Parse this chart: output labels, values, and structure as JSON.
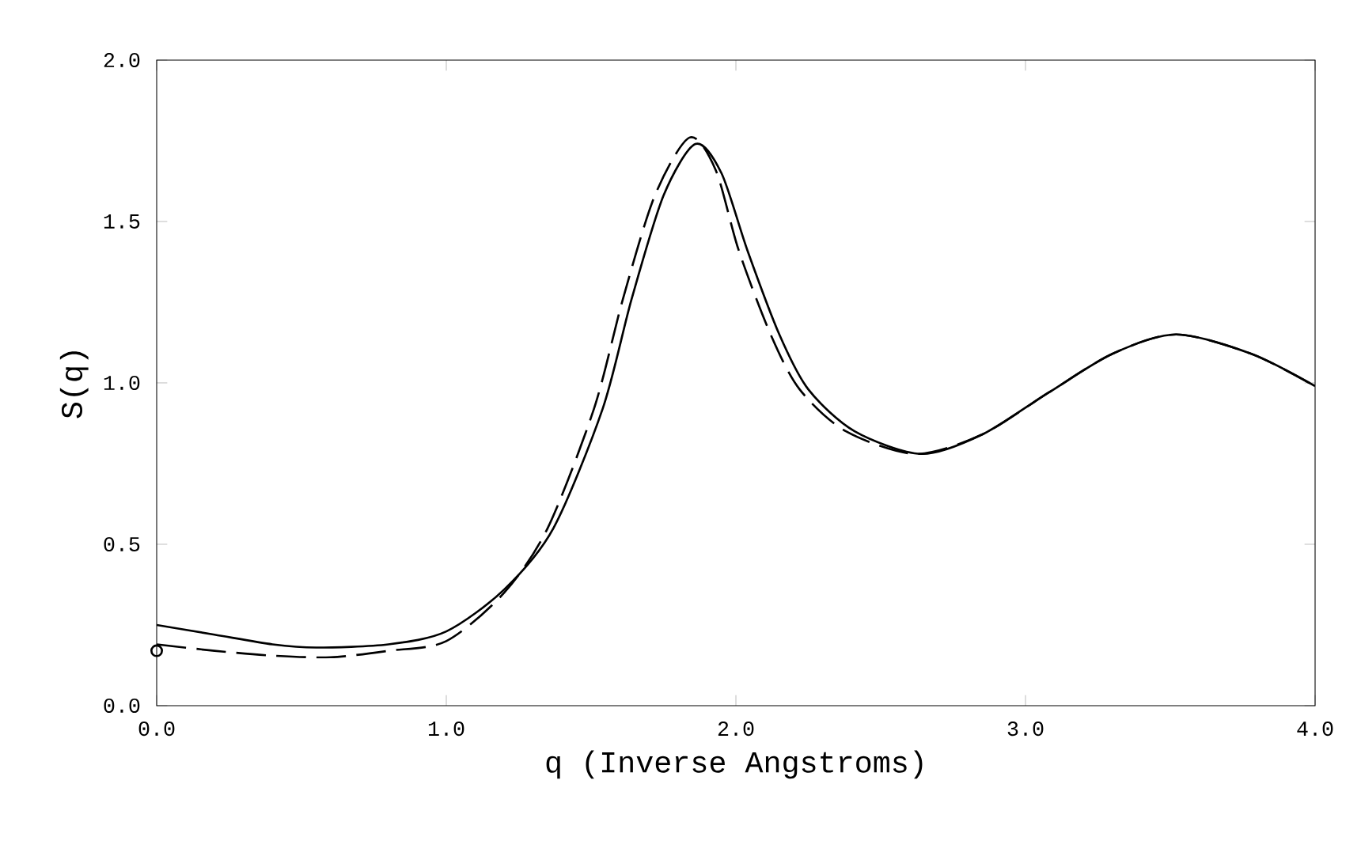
{
  "chart_data": {
    "type": "line",
    "xlabel": "q (Inverse Angstroms)",
    "ylabel": "S(q)",
    "xlim": [
      0,
      4
    ],
    "ylim": [
      0,
      2
    ],
    "xticks": [
      {
        "value": 0,
        "label": "0.0"
      },
      {
        "value": 1,
        "label": "1.0"
      },
      {
        "value": 2,
        "label": "2.0"
      },
      {
        "value": 3,
        "label": "3.0"
      },
      {
        "value": 4,
        "label": "4.0"
      }
    ],
    "yticks": [
      {
        "value": 0,
        "label": "0.0"
      },
      {
        "value": 0.5,
        "label": "0.5"
      },
      {
        "value": 1,
        "label": "1.0"
      },
      {
        "value": 1.5,
        "label": "1.5"
      },
      {
        "value": 2,
        "label": "2.0"
      }
    ],
    "series": [
      {
        "color": "#000000",
        "line_style": "solid",
        "marker": "none",
        "x": [
          0,
          0.2,
          0.4,
          0.55,
          0.8,
          1.0,
          1.2,
          1.37,
          1.54,
          1.64,
          1.75,
          1.86,
          1.95,
          2.04,
          2.15,
          2.25,
          2.41,
          2.64,
          2.85,
          3.08,
          3.3,
          3.52,
          3.78,
          4.0
        ],
        "values": [
          0.25,
          0.22,
          0.19,
          0.18,
          0.19,
          0.23,
          0.36,
          0.55,
          0.92,
          1.26,
          1.58,
          1.74,
          1.65,
          1.41,
          1.15,
          0.98,
          0.85,
          0.78,
          0.84,
          0.97,
          1.09,
          1.15,
          1.09,
          0.99
        ]
      },
      {
        "color": "#000000",
        "line_style": "dashed",
        "marker": "none",
        "x": [
          0,
          0.2,
          0.4,
          0.6,
          0.8,
          1.0,
          1.2,
          1.35,
          1.51,
          1.61,
          1.72,
          1.84,
          1.93,
          2.01,
          2.12,
          2.22,
          2.38,
          2.62,
          2.85,
          3.08,
          3.3,
          3.52,
          3.78,
          4.0
        ],
        "values": [
          0.19,
          0.17,
          0.155,
          0.15,
          0.17,
          0.2,
          0.35,
          0.55,
          0.92,
          1.26,
          1.58,
          1.76,
          1.66,
          1.41,
          1.15,
          0.98,
          0.85,
          0.78,
          0.84,
          0.97,
          1.09,
          1.15,
          1.09,
          0.99
        ]
      },
      {
        "type": "scatter",
        "color": "#000000",
        "marker": "circle",
        "x": [
          0
        ],
        "values": [
          0.17
        ]
      }
    ]
  }
}
